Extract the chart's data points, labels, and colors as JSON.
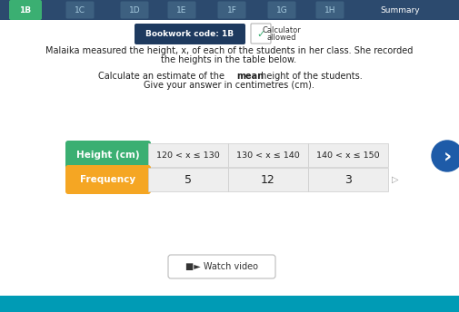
{
  "bg_color": "#e4eff5",
  "nav_items": [
    "1B",
    "1C",
    "1D",
    "1E",
    "1F",
    "1G",
    "1H",
    "Summary"
  ],
  "nav_active": "1B",
  "bookwork_code": "Bookwork code: 1B",
  "calculator_line1": "Calculator",
  "calculator_line2": "allowed",
  "main_text_line1": "Malaika measured the height, x, of each of the students in her class. She recorded",
  "main_text_line2": "the heights in the table below.",
  "question_pre": "Calculate an estimate of the ",
  "question_bold": "mean",
  "question_post": " height of the students.",
  "question_line2": "Give your answer in centimetres (cm).",
  "table_header_label": "Height (cm)",
  "table_header_bg": "#3baf72",
  "table_freq_label": "Frequency",
  "table_freq_bg": "#f5a623",
  "table_col1": "120 < x ≤ 130",
  "table_col2": "130 < x ≤ 140",
  "table_col3": "140 < x ≤ 150",
  "table_freq1": "5",
  "table_freq2": "12",
  "table_freq3": "3",
  "watch_video_text": "■► Watch video",
  "table_data_bg": "#eeeeee",
  "table_border_color": "#cccccc",
  "text_color": "#222222",
  "nav_bar_bg": "#2c4a6e",
  "nav_active_bg": "#3baf72",
  "nav_item_color": "#a8cce0",
  "nav_active_color": "#ffffff",
  "nav_summary_color": "#ffffff",
  "bookwork_btn_bg": "#1e3a5f",
  "content_bg": "#f0f4f8"
}
